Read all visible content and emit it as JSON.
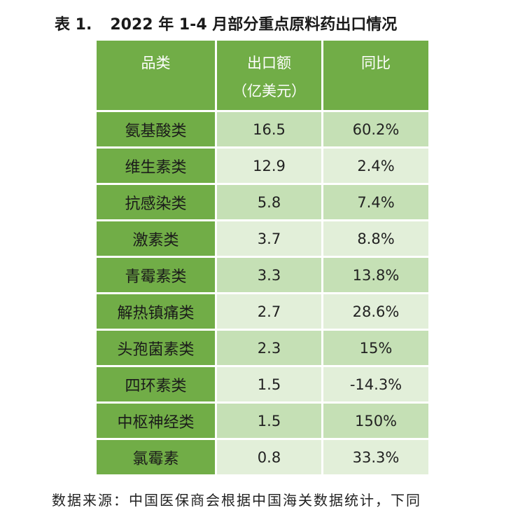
{
  "title": {
    "label": "表 1.",
    "text": "2022 年  1-4 月部分重点原料药出口情况"
  },
  "table": {
    "headers": {
      "category": "品类",
      "exports": "出口额",
      "exports_unit": "（亿美元）",
      "yoy": "同比"
    },
    "rows": [
      {
        "category": "氨基酸类",
        "exports": "16.5",
        "yoy": "60.2%"
      },
      {
        "category": "维生素类",
        "exports": "12.9",
        "yoy": "2.4%"
      },
      {
        "category": "抗感染类",
        "exports": "5.8",
        "yoy": "7.4%"
      },
      {
        "category": "激素类",
        "exports": "3.7",
        "yoy": "8.8%"
      },
      {
        "category": "青霉素类",
        "exports": "3.3",
        "yoy": "13.8%"
      },
      {
        "category": "解热镇痛类",
        "exports": "2.7",
        "yoy": "28.6%"
      },
      {
        "category": "头孢菌素类",
        "exports": "2.3",
        "yoy": "15%"
      },
      {
        "category": "四环素类",
        "exports": "1.5",
        "yoy": "-14.3%"
      },
      {
        "category": "中枢神经类",
        "exports": "1.5",
        "yoy": "150%"
      },
      {
        "category": "氯霉素",
        "exports": "0.8",
        "yoy": "33.3%"
      }
    ]
  },
  "source_note": "数据来源：中国医保商会根据中国海关数据统计，下同",
  "colors": {
    "header_green": "#71ad47",
    "row_odd": "#c5e0b5",
    "row_even": "#e2efd9"
  }
}
